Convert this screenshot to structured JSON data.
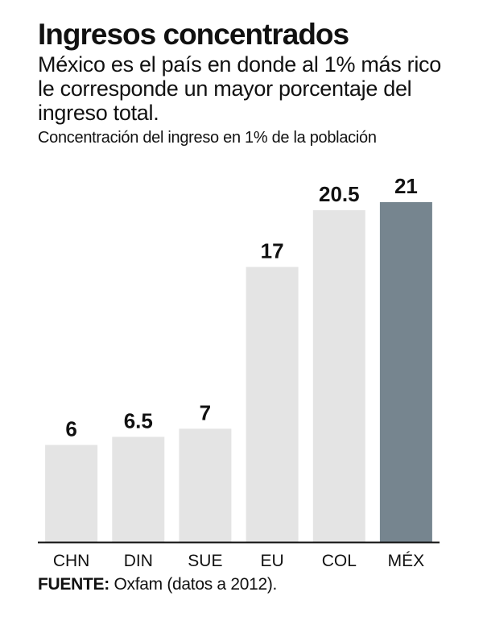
{
  "header": {
    "title": "Ingresos concentrados",
    "subtitle": "México es el país en donde al 1% más rico le corresponde un mayor porcentaje del ingreso total.",
    "caption": "Concentración del ingreso en 1% de la población"
  },
  "source": {
    "label": "FUENTE:",
    "text": "Oxfam (datos a 2012)."
  },
  "colors": {
    "bar": "#e4e4e4",
    "highlight_bar": "#76858f",
    "axis": "#111111",
    "text": "#111111"
  },
  "chart_data": {
    "type": "bar",
    "categories": [
      "CHN",
      "DIN",
      "SUE",
      "EU",
      "COL",
      "MÉX"
    ],
    "values": [
      6,
      6.5,
      7,
      17,
      20.5,
      21
    ],
    "data_labels": [
      "6",
      "6.5",
      "7",
      "17",
      "20.5",
      "21"
    ],
    "highlight": "MÉX",
    "xlabel": "",
    "ylabel": "",
    "ylim": [
      0,
      21
    ],
    "grid": false,
    "legend": "none"
  }
}
